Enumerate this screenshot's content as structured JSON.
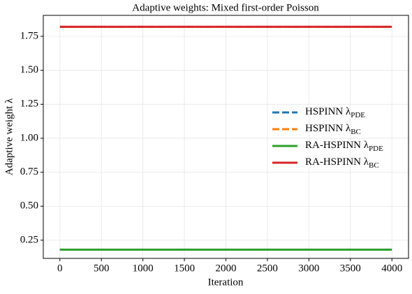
{
  "chart_data": {
    "type": "line",
    "title": "Adaptive weights: Mixed first-order Poisson",
    "xlabel": "Iteration",
    "ylabel": "Adaptive weight λ",
    "x": [
      0,
      4000
    ],
    "series": [
      {
        "name": "HSPINN λ",
        "subscript": "PDE",
        "color": "#1f77b4",
        "dash": true,
        "values": [
          0.18,
          0.18
        ]
      },
      {
        "name": "HSPINN λ",
        "subscript": "BC",
        "color": "#ff7f0e",
        "dash": true,
        "values": [
          1.82,
          1.82
        ]
      },
      {
        "name": "RA-HSPINN λ",
        "subscript": "PDE",
        "color": "#2ca02c",
        "dash": false,
        "values": [
          0.18,
          0.18
        ]
      },
      {
        "name": "RA-HSPINN λ",
        "subscript": "BC",
        "color": "#d62728",
        "dash": false,
        "values": [
          1.82,
          1.82
        ]
      }
    ],
    "xlim": [
      -200,
      4200
    ],
    "xticks": [
      0,
      500,
      1000,
      1500,
      2000,
      2500,
      3000,
      3500,
      4000
    ],
    "ylim": [
      0.116,
      1.904
    ],
    "yticks": [
      0.25,
      {
        "value": 0.5,
        "label": "0.50"
      },
      0.75,
      {
        "value": 1,
        "label": "1.00"
      },
      1.25,
      {
        "value": 1.5,
        "label": "1.50"
      },
      1.75
    ],
    "grid": true,
    "legend": "center right"
  }
}
